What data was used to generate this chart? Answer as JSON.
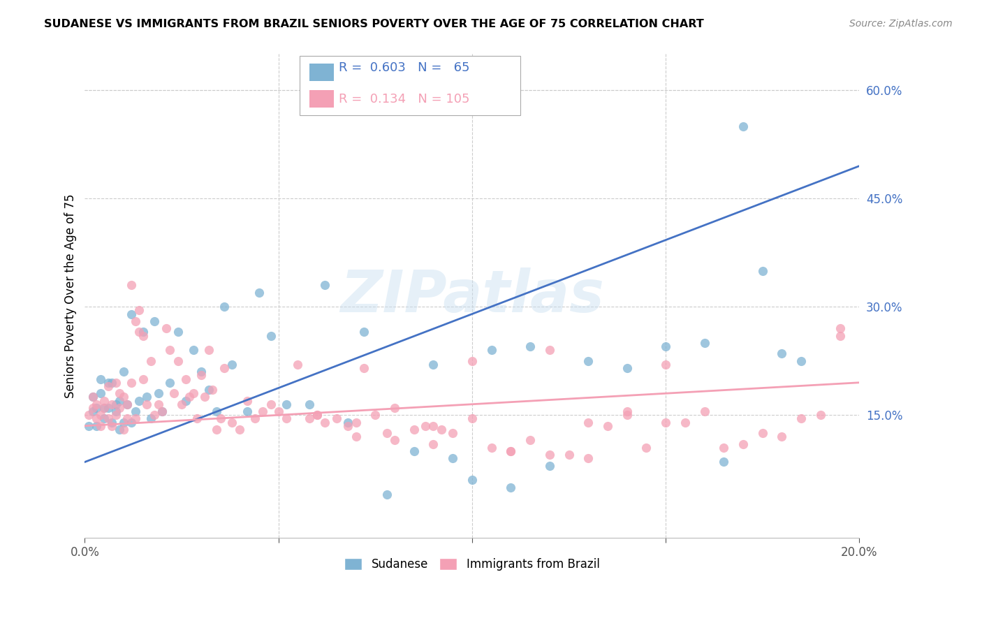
{
  "title": "SUDANESE VS IMMIGRANTS FROM BRAZIL SENIORS POVERTY OVER THE AGE OF 75 CORRELATION CHART",
  "source": "Source: ZipAtlas.com",
  "ylabel": "Seniors Poverty Over the Age of 75",
  "xlim": [
    0.0,
    0.2
  ],
  "ylim": [
    -0.02,
    0.65
  ],
  "y_ticks_right": [
    0.15,
    0.3,
    0.45,
    0.6
  ],
  "y_tick_labels_right": [
    "15.0%",
    "30.0%",
    "45.0%",
    "60.0%"
  ],
  "watermark": "ZIPatlas",
  "sudanese_color": "#7fb3d3",
  "brazil_color": "#f4a0b5",
  "sudanese_line_color": "#4472c4",
  "brazil_line_color": "#f4a0b5",
  "sudanese_R": 0.603,
  "brazil_R": 0.134,
  "sudanese_N": 65,
  "brazil_N": 105,
  "sue_line_x": [
    0.0,
    0.2
  ],
  "sue_line_y": [
    0.085,
    0.495
  ],
  "bra_line_x": [
    0.0,
    0.2
  ],
  "bra_line_y": [
    0.135,
    0.195
  ],
  "sudanese_x": [
    0.001,
    0.002,
    0.002,
    0.003,
    0.003,
    0.004,
    0.004,
    0.005,
    0.005,
    0.006,
    0.006,
    0.007,
    0.007,
    0.008,
    0.008,
    0.009,
    0.009,
    0.01,
    0.01,
    0.011,
    0.012,
    0.012,
    0.013,
    0.014,
    0.015,
    0.016,
    0.017,
    0.018,
    0.019,
    0.02,
    0.022,
    0.024,
    0.026,
    0.028,
    0.03,
    0.032,
    0.034,
    0.036,
    0.038,
    0.042,
    0.045,
    0.048,
    0.052,
    0.058,
    0.062,
    0.068,
    0.072,
    0.078,
    0.085,
    0.09,
    0.095,
    0.1,
    0.105,
    0.11,
    0.115,
    0.12,
    0.13,
    0.14,
    0.15,
    0.16,
    0.165,
    0.17,
    0.175,
    0.18,
    0.185
  ],
  "sudanese_y": [
    0.135,
    0.155,
    0.175,
    0.135,
    0.16,
    0.18,
    0.2,
    0.145,
    0.16,
    0.195,
    0.16,
    0.14,
    0.195,
    0.165,
    0.155,
    0.17,
    0.13,
    0.21,
    0.14,
    0.165,
    0.14,
    0.29,
    0.155,
    0.17,
    0.265,
    0.175,
    0.145,
    0.28,
    0.18,
    0.155,
    0.195,
    0.265,
    0.17,
    0.24,
    0.21,
    0.185,
    0.155,
    0.3,
    0.22,
    0.155,
    0.32,
    0.26,
    0.165,
    0.165,
    0.33,
    0.14,
    0.265,
    0.04,
    0.1,
    0.22,
    0.09,
    0.06,
    0.24,
    0.05,
    0.245,
    0.08,
    0.225,
    0.215,
    0.245,
    0.25,
    0.085,
    0.55,
    0.35,
    0.235,
    0.225
  ],
  "brazil_x": [
    0.001,
    0.002,
    0.002,
    0.003,
    0.003,
    0.004,
    0.004,
    0.005,
    0.005,
    0.006,
    0.006,
    0.007,
    0.007,
    0.008,
    0.008,
    0.009,
    0.009,
    0.01,
    0.01,
    0.011,
    0.011,
    0.012,
    0.012,
    0.013,
    0.013,
    0.014,
    0.014,
    0.015,
    0.015,
    0.016,
    0.017,
    0.018,
    0.019,
    0.02,
    0.021,
    0.022,
    0.023,
    0.024,
    0.025,
    0.026,
    0.027,
    0.028,
    0.029,
    0.03,
    0.031,
    0.032,
    0.033,
    0.034,
    0.035,
    0.036,
    0.038,
    0.04,
    0.042,
    0.044,
    0.046,
    0.048,
    0.05,
    0.052,
    0.055,
    0.058,
    0.06,
    0.062,
    0.065,
    0.068,
    0.07,
    0.072,
    0.075,
    0.078,
    0.08,
    0.085,
    0.088,
    0.09,
    0.092,
    0.095,
    0.1,
    0.105,
    0.11,
    0.115,
    0.12,
    0.125,
    0.13,
    0.135,
    0.14,
    0.145,
    0.15,
    0.155,
    0.16,
    0.165,
    0.17,
    0.175,
    0.18,
    0.185,
    0.19,
    0.195,
    0.12,
    0.13,
    0.06,
    0.07,
    0.08,
    0.09,
    0.1,
    0.11,
    0.14,
    0.15,
    0.195
  ],
  "brazil_y": [
    0.15,
    0.16,
    0.175,
    0.145,
    0.165,
    0.15,
    0.135,
    0.17,
    0.16,
    0.145,
    0.19,
    0.165,
    0.135,
    0.15,
    0.195,
    0.18,
    0.16,
    0.13,
    0.175,
    0.145,
    0.165,
    0.195,
    0.33,
    0.145,
    0.28,
    0.265,
    0.295,
    0.2,
    0.26,
    0.165,
    0.225,
    0.15,
    0.165,
    0.155,
    0.27,
    0.24,
    0.18,
    0.225,
    0.165,
    0.2,
    0.175,
    0.18,
    0.145,
    0.205,
    0.175,
    0.24,
    0.185,
    0.13,
    0.145,
    0.215,
    0.14,
    0.13,
    0.17,
    0.145,
    0.155,
    0.165,
    0.155,
    0.145,
    0.22,
    0.145,
    0.15,
    0.14,
    0.145,
    0.135,
    0.12,
    0.215,
    0.15,
    0.125,
    0.16,
    0.13,
    0.135,
    0.11,
    0.13,
    0.125,
    0.145,
    0.105,
    0.1,
    0.115,
    0.24,
    0.095,
    0.09,
    0.135,
    0.15,
    0.105,
    0.22,
    0.14,
    0.155,
    0.105,
    0.11,
    0.125,
    0.12,
    0.145,
    0.15,
    0.26,
    0.095,
    0.14,
    0.15,
    0.14,
    0.115,
    0.135,
    0.225,
    0.1,
    0.155,
    0.14,
    0.27
  ]
}
